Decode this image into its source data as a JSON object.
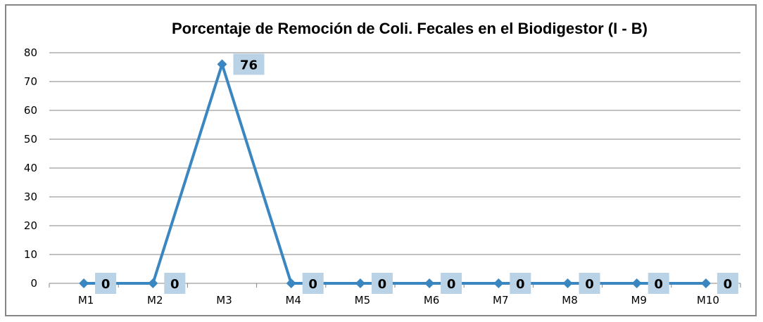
{
  "chart_data": {
    "type": "line",
    "title": "Porcentaje de Remoción de Coli. Fecales en el Biodigestor (I - B)",
    "xlabel": "",
    "ylabel": "",
    "categories": [
      "M1",
      "M2",
      "M3",
      "M4",
      "M5",
      "M6",
      "M7",
      "M8",
      "M9",
      "M10"
    ],
    "series": [
      {
        "values": [
          0,
          0,
          76,
          0,
          0,
          0,
          0,
          0,
          0,
          0
        ],
        "labels": [
          "0",
          "0",
          "76",
          "0",
          "0",
          "0",
          "0",
          "0",
          "0",
          "0"
        ],
        "color": "#3a86c0"
      }
    ],
    "ylim": [
      0,
      80
    ],
    "yticks": [
      "0",
      "10",
      "20",
      "30",
      "40",
      "50",
      "60",
      "70",
      "80"
    ],
    "grid": "horizontal",
    "legend": "none",
    "label_bg_color": "#bad2e6"
  }
}
